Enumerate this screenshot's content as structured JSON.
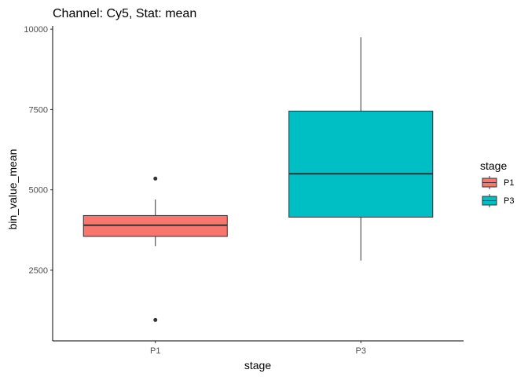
{
  "chart_data": {
    "type": "boxplot",
    "title": "Channel: Cy5, Stat: mean",
    "xlabel": "stage",
    "ylabel": "bin_value_mean",
    "categories": [
      "P1",
      "P3"
    ],
    "ylim": [
      300,
      10100
    ],
    "yticks": [
      2500,
      5000,
      7500,
      10000
    ],
    "grid": false,
    "legend": {
      "title": "stage",
      "position": "right",
      "entries": [
        "P1",
        "P3"
      ]
    },
    "colors": {
      "P1": "#F8766D",
      "P3": "#00BFC4"
    },
    "boxes": [
      {
        "name": "P1",
        "min": 3250,
        "q1": 3550,
        "median": 3900,
        "q3": 4200,
        "max": 4700,
        "outliers": [
          5350,
          950
        ]
      },
      {
        "name": "P3",
        "min": 2800,
        "q1": 4150,
        "median": 5500,
        "q3": 7450,
        "max": 9750,
        "outliers": []
      }
    ]
  }
}
